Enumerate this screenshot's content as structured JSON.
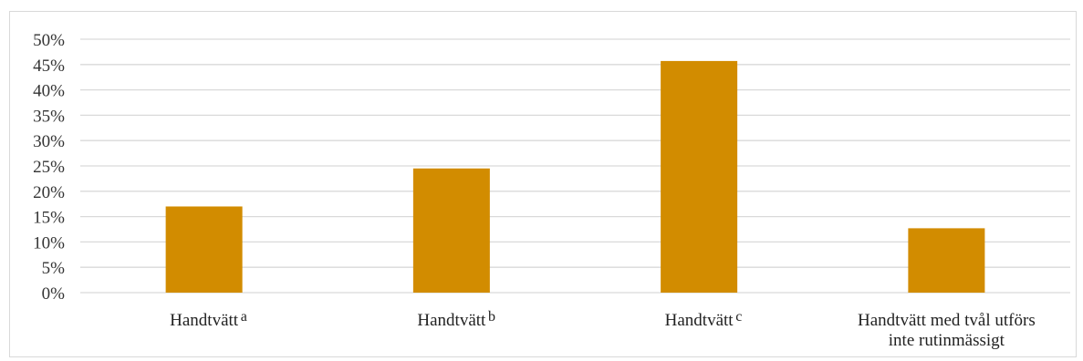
{
  "chart_data": {
    "type": "bar",
    "categories": [
      {
        "lines": [
          "Handtvätt"
        ],
        "superscript": "a"
      },
      {
        "lines": [
          "Handtvätt"
        ],
        "superscript": "b"
      },
      {
        "lines": [
          "Handtvätt"
        ],
        "superscript": "c"
      },
      {
        "lines": [
          "Handtvätt med tvål utförs",
          "inte rutinmässigt"
        ],
        "superscript": ""
      }
    ],
    "values": [
      17,
      24.5,
      45.7,
      12.7
    ],
    "ylim": [
      0,
      50
    ],
    "yticks": [
      0,
      5,
      10,
      15,
      20,
      25,
      30,
      35,
      40,
      45,
      50
    ],
    "ytick_labels": [
      "0%",
      "5%",
      "10%",
      "15%",
      "20%",
      "25%",
      "30%",
      "35%",
      "40%",
      "45%",
      "50%"
    ],
    "grid": true,
    "title": "",
    "xlabel": "",
    "ylabel": "",
    "bar_color": "#d28c00",
    "grid_color": "#d9d9d9"
  }
}
